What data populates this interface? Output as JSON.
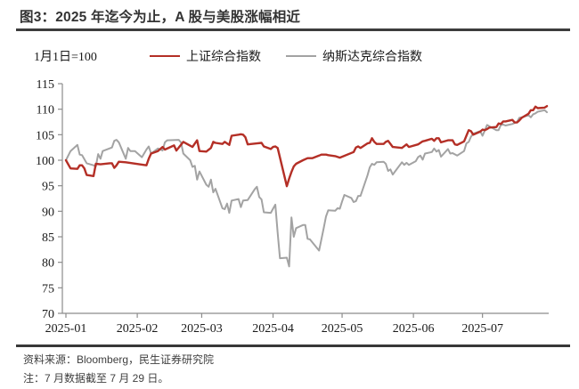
{
  "header": {
    "title": "图3：2025 年迄今为止，A 股与美股涨幅相近"
  },
  "footer": {
    "source": "资料来源：Bloomberg，民生证券研究院",
    "note": "注：7 月数据截至 7 月 29 日。"
  },
  "colors": {
    "shanghai_line": "#B42F26",
    "nasdaq_line": "#A3A3A3",
    "axis": "#8C8C8C",
    "rule": "#3d3d3d",
    "title_text": "#333333"
  },
  "chart_data": {
    "type": "line",
    "title": "图3：2025 年迄今为止，A 股与美股涨幅相近",
    "index_base_note": "1月1日=100",
    "xlabel": "",
    "ylabel": "",
    "ylim": [
      70,
      115
    ],
    "ytick_step": 5,
    "grid": false,
    "legend_position": "top",
    "x_tick_labels": [
      "2025-01",
      "2025-02",
      "2025-03",
      "2025-04",
      "2025-05",
      "2025-06",
      "2025-07"
    ],
    "x_end_date": "07-29",
    "series": [
      {
        "name": "纳斯达克综合指数",
        "color": "#A3A3A3",
        "points": [
          [
            "01-01",
            100.0
          ],
          [
            "01-03",
            101.8
          ],
          [
            "01-06",
            103.0
          ],
          [
            "01-07",
            101.1
          ],
          [
            "01-08",
            101.0
          ],
          [
            "01-10",
            99.4
          ],
          [
            "01-13",
            99.0
          ],
          [
            "01-14",
            98.8
          ],
          [
            "01-15",
            101.2
          ],
          [
            "01-16",
            100.3
          ],
          [
            "01-17",
            101.8
          ],
          [
            "01-21",
            102.5
          ],
          [
            "01-22",
            103.8
          ],
          [
            "01-23",
            104.0
          ],
          [
            "01-24",
            103.5
          ],
          [
            "01-27",
            100.3
          ],
          [
            "01-28",
            102.4
          ],
          [
            "01-29",
            101.8
          ],
          [
            "01-31",
            101.8
          ],
          [
            "02-03",
            100.6
          ],
          [
            "02-05",
            102.1
          ],
          [
            "02-06",
            102.7
          ],
          [
            "02-07",
            101.3
          ],
          [
            "02-10",
            102.3
          ],
          [
            "02-12",
            101.9
          ],
          [
            "02-13",
            103.5
          ],
          [
            "02-14",
            103.9
          ],
          [
            "02-19",
            104.0
          ],
          [
            "02-20",
            103.5
          ],
          [
            "02-21",
            101.3
          ],
          [
            "02-24",
            100.0
          ],
          [
            "02-25",
            98.7
          ],
          [
            "02-26",
            98.9
          ],
          [
            "02-27",
            96.2
          ],
          [
            "02-28",
            97.8
          ],
          [
            "03-03",
            95.2
          ],
          [
            "03-04",
            94.8
          ],
          [
            "03-05",
            96.2
          ],
          [
            "03-06",
            93.7
          ],
          [
            "03-07",
            94.4
          ],
          [
            "03-10",
            90.6
          ],
          [
            "03-11",
            90.4
          ],
          [
            "03-12",
            91.5
          ],
          [
            "03-13",
            89.7
          ],
          [
            "03-14",
            92.1
          ],
          [
            "03-17",
            92.4
          ],
          [
            "03-18",
            90.8
          ],
          [
            "03-19",
            92.1
          ],
          [
            "03-21",
            92.2
          ],
          [
            "03-24",
            94.3
          ],
          [
            "03-25",
            94.8
          ],
          [
            "03-26",
            92.8
          ],
          [
            "03-27",
            92.3
          ],
          [
            "03-28",
            89.8
          ],
          [
            "03-31",
            89.7
          ],
          [
            "04-01",
            90.5
          ],
          [
            "04-02",
            91.3
          ],
          [
            "04-03",
            85.8
          ],
          [
            "04-04",
            80.8
          ],
          [
            "04-07",
            80.9
          ],
          [
            "04-08",
            79.2
          ],
          [
            "04-09",
            88.8
          ],
          [
            "04-10",
            85.0
          ],
          [
            "04-11",
            86.7
          ],
          [
            "04-14",
            87.3
          ],
          [
            "04-15",
            87.3
          ],
          [
            "04-16",
            84.6
          ],
          [
            "04-17",
            84.5
          ],
          [
            "04-21",
            82.3
          ],
          [
            "04-22",
            84.5
          ],
          [
            "04-23",
            86.7
          ],
          [
            "04-24",
            89.0
          ],
          [
            "04-25",
            90.2
          ],
          [
            "04-28",
            90.1
          ],
          [
            "04-29",
            90.6
          ],
          [
            "04-30",
            90.5
          ],
          [
            "05-01",
            91.9
          ],
          [
            "05-02",
            93.2
          ],
          [
            "05-05",
            92.6
          ],
          [
            "05-06",
            91.8
          ],
          [
            "05-07",
            92.0
          ],
          [
            "05-08",
            93.0
          ],
          [
            "05-09",
            93.0
          ],
          [
            "05-12",
            97.0
          ],
          [
            "05-13",
            98.6
          ],
          [
            "05-14",
            99.3
          ],
          [
            "05-15",
            99.1
          ],
          [
            "05-16",
            99.6
          ],
          [
            "05-19",
            99.7
          ],
          [
            "05-20",
            99.3
          ],
          [
            "05-21",
            97.9
          ],
          [
            "05-22",
            98.2
          ],
          [
            "05-23",
            97.2
          ],
          [
            "05-27",
            99.6
          ],
          [
            "05-28",
            99.1
          ],
          [
            "05-29",
            99.5
          ],
          [
            "05-30",
            99.1
          ],
          [
            "06-02",
            99.8
          ],
          [
            "06-03",
            100.6
          ],
          [
            "06-04",
            100.9
          ],
          [
            "06-05",
            100.1
          ],
          [
            "06-06",
            101.3
          ],
          [
            "06-09",
            101.6
          ],
          [
            "06-10",
            102.3
          ],
          [
            "06-11",
            101.7
          ],
          [
            "06-12",
            102.0
          ],
          [
            "06-13",
            100.7
          ],
          [
            "06-16",
            102.2
          ],
          [
            "06-17",
            101.3
          ],
          [
            "06-18",
            101.4
          ],
          [
            "06-20",
            100.9
          ],
          [
            "06-23",
            101.8
          ],
          [
            "06-24",
            103.3
          ],
          [
            "06-25",
            103.6
          ],
          [
            "06-26",
            104.6
          ],
          [
            "06-27",
            105.2
          ],
          [
            "06-30",
            105.7
          ],
          [
            "07-01",
            104.8
          ],
          [
            "07-02",
            105.8
          ],
          [
            "07-03",
            106.9
          ],
          [
            "07-07",
            105.9
          ],
          [
            "07-08",
            105.9
          ],
          [
            "07-09",
            106.9
          ],
          [
            "07-10",
            107.0
          ],
          [
            "07-11",
            106.8
          ],
          [
            "07-14",
            107.1
          ],
          [
            "07-15",
            107.3
          ],
          [
            "07-16",
            107.5
          ],
          [
            "07-17",
            108.3
          ],
          [
            "07-18",
            108.4
          ],
          [
            "07-21",
            108.8
          ],
          [
            "07-22",
            108.4
          ],
          [
            "07-23",
            109.0
          ],
          [
            "07-24",
            109.2
          ],
          [
            "07-25",
            109.5
          ],
          [
            "07-28",
            109.8
          ],
          [
            "07-29",
            109.4
          ]
        ]
      },
      {
        "name": "上证综合指数",
        "color": "#B42F26",
        "points": [
          [
            "01-01",
            100.0
          ],
          [
            "01-03",
            98.4
          ],
          [
            "01-06",
            98.3
          ],
          [
            "01-07",
            99.0
          ],
          [
            "01-08",
            99.0
          ],
          [
            "01-09",
            98.4
          ],
          [
            "01-10",
            97.1
          ],
          [
            "01-13",
            96.9
          ],
          [
            "01-14",
            99.3
          ],
          [
            "01-16",
            99.2
          ],
          [
            "01-20",
            99.4
          ],
          [
            "01-21",
            99.4
          ],
          [
            "01-22",
            98.5
          ],
          [
            "01-23",
            99.0
          ],
          [
            "01-24",
            99.7
          ],
          [
            "01-27",
            99.6
          ],
          [
            "02-05",
            99.0
          ],
          [
            "02-06",
            100.3
          ],
          [
            "02-07",
            101.3
          ],
          [
            "02-10",
            101.8
          ],
          [
            "02-12",
            102.6
          ],
          [
            "02-13",
            102.1
          ],
          [
            "02-17",
            102.9
          ],
          [
            "02-18",
            101.9
          ],
          [
            "02-21",
            103.6
          ],
          [
            "02-25",
            102.6
          ],
          [
            "02-27",
            103.9
          ],
          [
            "02-28",
            101.8
          ],
          [
            "03-03",
            101.7
          ],
          [
            "03-05",
            102.4
          ],
          [
            "03-06",
            103.6
          ],
          [
            "03-07",
            103.4
          ],
          [
            "03-10",
            103.2
          ],
          [
            "03-11",
            103.6
          ],
          [
            "03-13",
            103.0
          ],
          [
            "03-14",
            104.8
          ],
          [
            "03-17",
            105.0
          ],
          [
            "03-18",
            105.1
          ],
          [
            "03-19",
            105.0
          ],
          [
            "03-20",
            104.5
          ],
          [
            "03-21",
            103.1
          ],
          [
            "03-25",
            103.3
          ],
          [
            "03-27",
            103.4
          ],
          [
            "03-28",
            102.7
          ],
          [
            "03-31",
            102.2
          ],
          [
            "04-01",
            102.6
          ],
          [
            "04-02",
            102.7
          ],
          [
            "04-03",
            102.4
          ],
          [
            "04-07",
            94.9
          ],
          [
            "04-08",
            96.4
          ],
          [
            "04-09",
            97.7
          ],
          [
            "04-10",
            98.8
          ],
          [
            "04-11",
            99.3
          ],
          [
            "04-14",
            100.0
          ],
          [
            "04-16",
            100.4
          ],
          [
            "04-18",
            100.4
          ],
          [
            "04-21",
            100.9
          ],
          [
            "04-22",
            101.1
          ],
          [
            "04-24",
            101.1
          ],
          [
            "04-25",
            101.0
          ],
          [
            "04-28",
            100.8
          ],
          [
            "04-30",
            100.5
          ],
          [
            "05-06",
            101.6
          ],
          [
            "05-07",
            102.5
          ],
          [
            "05-08",
            102.7
          ],
          [
            "05-09",
            102.4
          ],
          [
            "05-12",
            103.3
          ],
          [
            "05-13",
            103.4
          ],
          [
            "05-14",
            104.3
          ],
          [
            "05-15",
            103.6
          ],
          [
            "05-16",
            103.2
          ],
          [
            "05-19",
            103.2
          ],
          [
            "05-20",
            103.6
          ],
          [
            "05-21",
            103.8
          ],
          [
            "05-23",
            102.6
          ],
          [
            "05-27",
            102.4
          ],
          [
            "05-29",
            103.1
          ],
          [
            "05-30",
            102.6
          ],
          [
            "06-03",
            103.1
          ],
          [
            "06-05",
            103.7
          ],
          [
            "06-06",
            103.8
          ],
          [
            "06-09",
            104.2
          ],
          [
            "06-10",
            103.8
          ],
          [
            "06-11",
            104.3
          ],
          [
            "06-12",
            104.3
          ],
          [
            "06-13",
            103.5
          ],
          [
            "06-16",
            103.9
          ],
          [
            "06-18",
            103.9
          ],
          [
            "06-19",
            103.1
          ],
          [
            "06-20",
            103.0
          ],
          [
            "06-23",
            103.7
          ],
          [
            "06-24",
            104.8
          ],
          [
            "06-25",
            105.9
          ],
          [
            "06-26",
            105.7
          ],
          [
            "06-27",
            105.0
          ],
          [
            "06-30",
            105.6
          ],
          [
            "07-01",
            106.0
          ],
          [
            "07-02",
            105.9
          ],
          [
            "07-03",
            106.1
          ],
          [
            "07-04",
            106.4
          ],
          [
            "07-07",
            106.5
          ],
          [
            "07-08",
            107.2
          ],
          [
            "07-09",
            107.1
          ],
          [
            "07-10",
            107.6
          ],
          [
            "07-11",
            107.6
          ],
          [
            "07-14",
            107.9
          ],
          [
            "07-15",
            107.4
          ],
          [
            "07-16",
            107.4
          ],
          [
            "07-17",
            107.8
          ],
          [
            "07-18",
            108.3
          ],
          [
            "07-21",
            109.1
          ],
          [
            "07-22",
            109.8
          ],
          [
            "07-23",
            109.8
          ],
          [
            "07-24",
            110.5
          ],
          [
            "07-25",
            110.2
          ],
          [
            "07-28",
            110.3
          ],
          [
            "07-29",
            110.6
          ]
        ]
      }
    ]
  }
}
